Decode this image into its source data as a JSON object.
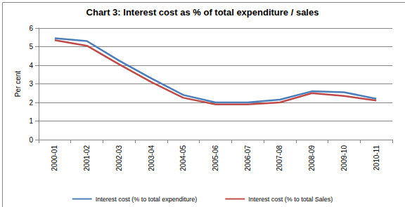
{
  "chart_data": {
    "type": "line",
    "title": "Chart 3: Interest cost as % of total expenditure / sales",
    "y_label": "Per cent",
    "categories": [
      "2000-01",
      "2001-02",
      "2002-03",
      "2003-04",
      "2004-05",
      "2005-06",
      "2006-07",
      "2007-08",
      "2008-09",
      "2009-10",
      "2010-11"
    ],
    "series": [
      {
        "name": "Interest cost (% to total expenditure)",
        "color": "#4a7ebb",
        "values": [
          5.45,
          5.3,
          4.25,
          3.3,
          2.4,
          2.0,
          2.0,
          2.15,
          2.6,
          2.55,
          2.2
        ]
      },
      {
        "name": "Interest cost (% to total Sales)",
        "color": "#be4b48",
        "values": [
          5.35,
          5.05,
          4.05,
          3.1,
          2.25,
          1.9,
          1.9,
          2.0,
          2.5,
          2.35,
          2.1
        ]
      }
    ],
    "ylim": [
      0,
      6
    ],
    "yticks": [
      0,
      1,
      2,
      3,
      4,
      5,
      6
    ],
    "grid": true,
    "legend": "bottom"
  }
}
